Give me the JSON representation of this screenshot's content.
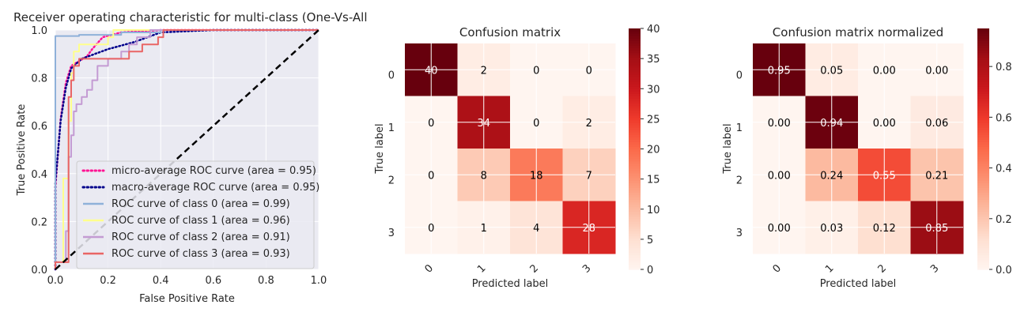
{
  "chart_data": [
    {
      "type": "line",
      "title": "Receiver operating characteristic for multi-class (One-Vs-All",
      "xlabel": "False Positive Rate",
      "ylabel": "True Positive Rate",
      "xlim": [
        0,
        1
      ],
      "ylim": [
        0,
        1
      ],
      "xticks": [
        "0.0",
        "0.2",
        "0.4",
        "0.6",
        "0.8",
        "1.0"
      ],
      "yticks": [
        "0.0",
        "0.2",
        "0.4",
        "0.6",
        "0.8",
        "1.0"
      ],
      "grid": true,
      "legend_position": "lower-right",
      "series": [
        {
          "name": "micro-average ROC curve (area = 0.95)",
          "color": "#ff1493",
          "style": "dotted",
          "points": [
            [
              0,
              0
            ],
            [
              0,
              0.34
            ],
            [
              0.02,
              0.63
            ],
            [
              0.04,
              0.78
            ],
            [
              0.06,
              0.85
            ],
            [
              0.09,
              0.87
            ],
            [
              0.12,
              0.89
            ],
            [
              0.14,
              0.92
            ],
            [
              0.18,
              0.97
            ],
            [
              0.25,
              0.99
            ],
            [
              0.4,
              1
            ],
            [
              1,
              1
            ]
          ]
        },
        {
          "name": "macro-average ROC curve (area = 0.95)",
          "color": "#00008b",
          "style": "dotted",
          "points": [
            [
              0,
              0
            ],
            [
              0,
              0.36
            ],
            [
              0.02,
              0.62
            ],
            [
              0.04,
              0.76
            ],
            [
              0.06,
              0.84
            ],
            [
              0.1,
              0.88
            ],
            [
              0.2,
              0.92
            ],
            [
              0.3,
              0.95
            ],
            [
              0.4,
              0.99
            ],
            [
              0.6,
              1
            ],
            [
              1,
              1
            ]
          ]
        },
        {
          "name": "ROC curve of class 0 (area = 0.99)",
          "color": "#8fb1d9",
          "style": "solid",
          "points": [
            [
              0,
              0
            ],
            [
              0,
              0.975
            ],
            [
              0.09,
              0.975
            ],
            [
              0.09,
              0.98
            ],
            [
              0.25,
              0.98
            ],
            [
              0.25,
              0.99
            ],
            [
              0.4,
              0.99
            ],
            [
              0.4,
              1
            ],
            [
              1,
              1
            ]
          ]
        },
        {
          "name": "ROC curve of class 1 (area = 0.96)",
          "color": "#ffff8c",
          "style": "solid",
          "points": [
            [
              0,
              0
            ],
            [
              0,
              0.03
            ],
            [
              0.03,
              0.03
            ],
            [
              0.03,
              0.38
            ],
            [
              0.05,
              0.38
            ],
            [
              0.05,
              0.62
            ],
            [
              0.06,
              0.62
            ],
            [
              0.06,
              0.82
            ],
            [
              0.07,
              0.82
            ],
            [
              0.07,
              0.91
            ],
            [
              0.09,
              0.91
            ],
            [
              0.09,
              0.94
            ],
            [
              0.2,
              0.94
            ],
            [
              0.2,
              0.97
            ],
            [
              0.22,
              0.97
            ],
            [
              0.22,
              1
            ],
            [
              1,
              1
            ]
          ]
        },
        {
          "name": "ROC curve of class 2 (area = 0.91)",
          "color": "#c49bd3",
          "style": "solid",
          "points": [
            [
              0,
              0
            ],
            [
              0,
              0.03
            ],
            [
              0.04,
              0.03
            ],
            [
              0.04,
              0.16
            ],
            [
              0.05,
              0.16
            ],
            [
              0.05,
              0.47
            ],
            [
              0.06,
              0.47
            ],
            [
              0.06,
              0.56
            ],
            [
              0.07,
              0.56
            ],
            [
              0.07,
              0.66
            ],
            [
              0.08,
              0.66
            ],
            [
              0.08,
              0.69
            ],
            [
              0.1,
              0.69
            ],
            [
              0.1,
              0.72
            ],
            [
              0.12,
              0.72
            ],
            [
              0.12,
              0.75
            ],
            [
              0.14,
              0.75
            ],
            [
              0.14,
              0.79
            ],
            [
              0.16,
              0.79
            ],
            [
              0.16,
              0.85
            ],
            [
              0.2,
              0.85
            ],
            [
              0.2,
              0.88
            ],
            [
              0.25,
              0.88
            ],
            [
              0.25,
              0.91
            ],
            [
              0.28,
              0.91
            ],
            [
              0.28,
              0.94
            ],
            [
              0.31,
              0.94
            ],
            [
              0.31,
              0.97
            ],
            [
              0.36,
              0.97
            ],
            [
              0.36,
              1
            ],
            [
              1,
              1
            ]
          ]
        },
        {
          "name": "ROC curve of class 3 (area = 0.93)",
          "color": "#e96565",
          "style": "solid",
          "points": [
            [
              0,
              0
            ],
            [
              0,
              0.03
            ],
            [
              0.05,
              0.03
            ],
            [
              0.05,
              0.72
            ],
            [
              0.06,
              0.72
            ],
            [
              0.06,
              0.79
            ],
            [
              0.07,
              0.79
            ],
            [
              0.07,
              0.85
            ],
            [
              0.09,
              0.85
            ],
            [
              0.09,
              0.88
            ],
            [
              0.28,
              0.88
            ],
            [
              0.28,
              0.91
            ],
            [
              0.33,
              0.91
            ],
            [
              0.33,
              0.94
            ],
            [
              0.39,
              0.94
            ],
            [
              0.39,
              0.97
            ],
            [
              0.41,
              0.97
            ],
            [
              0.41,
              1
            ],
            [
              1,
              1
            ]
          ]
        },
        {
          "name": "",
          "color": "#000000",
          "style": "dashed",
          "points": [
            [
              0,
              0
            ],
            [
              1,
              1
            ]
          ]
        }
      ]
    },
    {
      "type": "heatmap",
      "title": "Confusion matrix",
      "xlabel": "Predicted label",
      "ylabel": "True label",
      "xticks": [
        "0",
        "1",
        "2",
        "3"
      ],
      "yticks": [
        "0",
        "1",
        "2",
        "3"
      ],
      "colormap": "Reds",
      "vmin": 0,
      "vmax": 40,
      "colorbar_ticks": [
        "0",
        "5",
        "10",
        "15",
        "20",
        "25",
        "30",
        "35",
        "40"
      ],
      "cells": [
        [
          "40",
          "2",
          "0",
          "0"
        ],
        [
          "0",
          "34",
          "0",
          "2"
        ],
        [
          "0",
          "8",
          "18",
          "7"
        ],
        [
          "0",
          "1",
          "4",
          "28"
        ]
      ]
    },
    {
      "type": "heatmap",
      "title": "Confusion matrix normalized",
      "xlabel": "Predicted label",
      "ylabel": "True label",
      "xticks": [
        "0",
        "1",
        "2",
        "3"
      ],
      "yticks": [
        "0",
        "1",
        "2",
        "3"
      ],
      "colormap": "Reds",
      "vmin": 0,
      "vmax": 0.95,
      "colorbar_ticks": [
        "0.0",
        "0.2",
        "0.4",
        "0.6",
        "0.8"
      ],
      "cells": [
        [
          "0.95",
          "0.05",
          "0.00",
          "0.00"
        ],
        [
          "0.00",
          "0.94",
          "0.00",
          "0.06"
        ],
        [
          "0.00",
          "0.24",
          "0.55",
          "0.21"
        ],
        [
          "0.00",
          "0.03",
          "0.12",
          "0.85"
        ]
      ]
    }
  ]
}
